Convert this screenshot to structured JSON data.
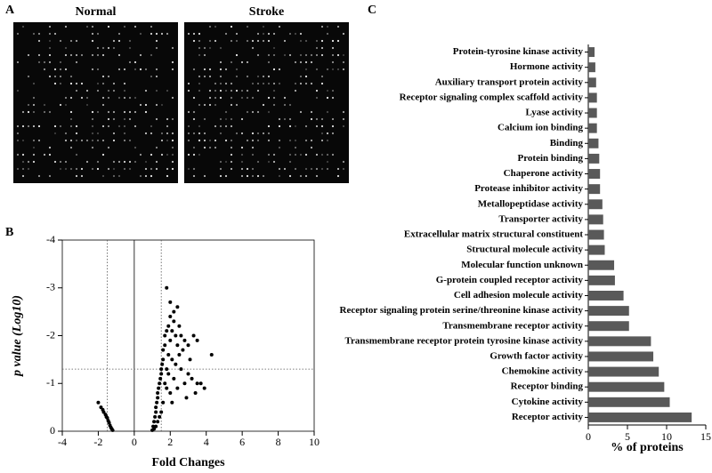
{
  "chart_data": [
    {
      "type": "image",
      "panel_label": "A",
      "image_titles": [
        "Normal",
        "Stroke"
      ]
    },
    {
      "type": "scatter",
      "panel_label": "B",
      "x_label": "Fold Changes",
      "y_label": "p value (Log10)",
      "x": [
        -2.0,
        -1.85,
        -1.75,
        -1.7,
        -1.6,
        -1.55,
        -1.5,
        -1.45,
        -1.4,
        -1.35,
        -1.3,
        -1.25,
        -1.2,
        1.0,
        1.05,
        1.1,
        1.15,
        1.2,
        1.2,
        1.25,
        1.3,
        1.3,
        1.35,
        1.4,
        1.45,
        1.5,
        1.5,
        1.55,
        1.6,
        1.6,
        1.7,
        1.7,
        1.8,
        1.9,
        2.0,
        1.9,
        2.0,
        2.1,
        2.2,
        2.3,
        2.4,
        2.5,
        2.6,
        2.8,
        3.0,
        3.3,
        3.5,
        3.2,
        3.5,
        3.7,
        3.9,
        4.3,
        3.0,
        2.8,
        2.6,
        2.4,
        2.2,
        2.0,
        1.8,
        1.9,
        2.1,
        2.3,
        2.5,
        1.8,
        2.0,
        2.2,
        1.6,
        1.7,
        1.8,
        2.1,
        1.5,
        1.4,
        1.3,
        1.2,
        1.1,
        2.4,
        2.7,
        3.1,
        2.9,
        3.4
      ],
      "y": [
        -0.6,
        -0.5,
        -0.45,
        -0.4,
        -0.35,
        -0.3,
        -0.28,
        -0.22,
        -0.18,
        -0.12,
        -0.08,
        -0.05,
        -0.02,
        -0.02,
        -0.1,
        -0.2,
        -0.3,
        -0.4,
        -0.5,
        -0.6,
        -0.7,
        -0.8,
        -0.9,
        -1.0,
        -1.1,
        -1.2,
        -1.3,
        -1.4,
        -1.5,
        -1.7,
        -1.8,
        -2.0,
        -2.1,
        -2.2,
        -2.4,
        -1.6,
        -1.9,
        -2.1,
        -2.3,
        -2.0,
        -1.8,
        -2.2,
        -2.0,
        -1.9,
        -1.8,
        -2.0,
        -1.9,
        -1.1,
        -1.0,
        -1.0,
        -0.9,
        -1.6,
        -1.2,
        -1.0,
        -1.3,
        -0.9,
        -1.1,
        -0.8,
        -0.9,
        -1.2,
        -1.5,
        -1.4,
        -1.6,
        -3.0,
        -2.7,
        -2.5,
        -0.6,
        -1.0,
        -1.3,
        -0.6,
        -0.4,
        -0.3,
        -0.2,
        -0.1,
        -0.05,
        -2.6,
        -1.7,
        -1.5,
        -0.7,
        -0.8
      ],
      "color": "#000000",
      "xlim": [
        -4,
        10
      ],
      "ylim": [
        0,
        -4
      ],
      "xticks": [
        -4,
        -2,
        0,
        2,
        4,
        6,
        8,
        10
      ],
      "yticks": [
        0,
        -1,
        -2,
        -3,
        -4
      ],
      "reference_lines": {
        "x": [
          -1.5,
          1.5
        ],
        "y": [
          -1.3
        ]
      }
    },
    {
      "type": "barh",
      "panel_label": "C",
      "x_label": "% of proteins",
      "categories": [
        "Protein-tyrosine kinase activity",
        "Hormone activity",
        "Auxiliary transport protein activity",
        "Receptor signaling complex scaffold activity",
        "Lyase activity",
        "Calcium ion binding",
        "Binding",
        "Protein binding",
        "Chaperone activity",
        "Protease inhibitor activity",
        "Metallopeptidase activity",
        "Transporter activity",
        "Extracellular matrix structural constituent",
        "Structural molecule activity",
        "Molecular function unknown",
        "G-protein coupled receptor activity",
        "Cell adhesion molecule activity",
        "Receptor signaling protein serine/threonine kinase activity",
        "Transmembrane receptor activity",
        "Transmembrane receptor protein tyrosine kinase activity",
        "Growth factor activity",
        "Chemokine activity",
        "Receptor binding",
        "Cytokine activity",
        "Receptor activity"
      ],
      "values": [
        0.8,
        0.9,
        1.0,
        1.1,
        1.1,
        1.1,
        1.3,
        1.4,
        1.5,
        1.5,
        1.8,
        1.9,
        2.0,
        2.1,
        3.3,
        3.4,
        4.5,
        5.2,
        5.2,
        8.0,
        8.3,
        9.0,
        9.7,
        10.4,
        13.2
      ],
      "color": "#595959",
      "xlim": [
        0,
        15
      ],
      "xticks": [
        0,
        5,
        10,
        15
      ]
    }
  ]
}
